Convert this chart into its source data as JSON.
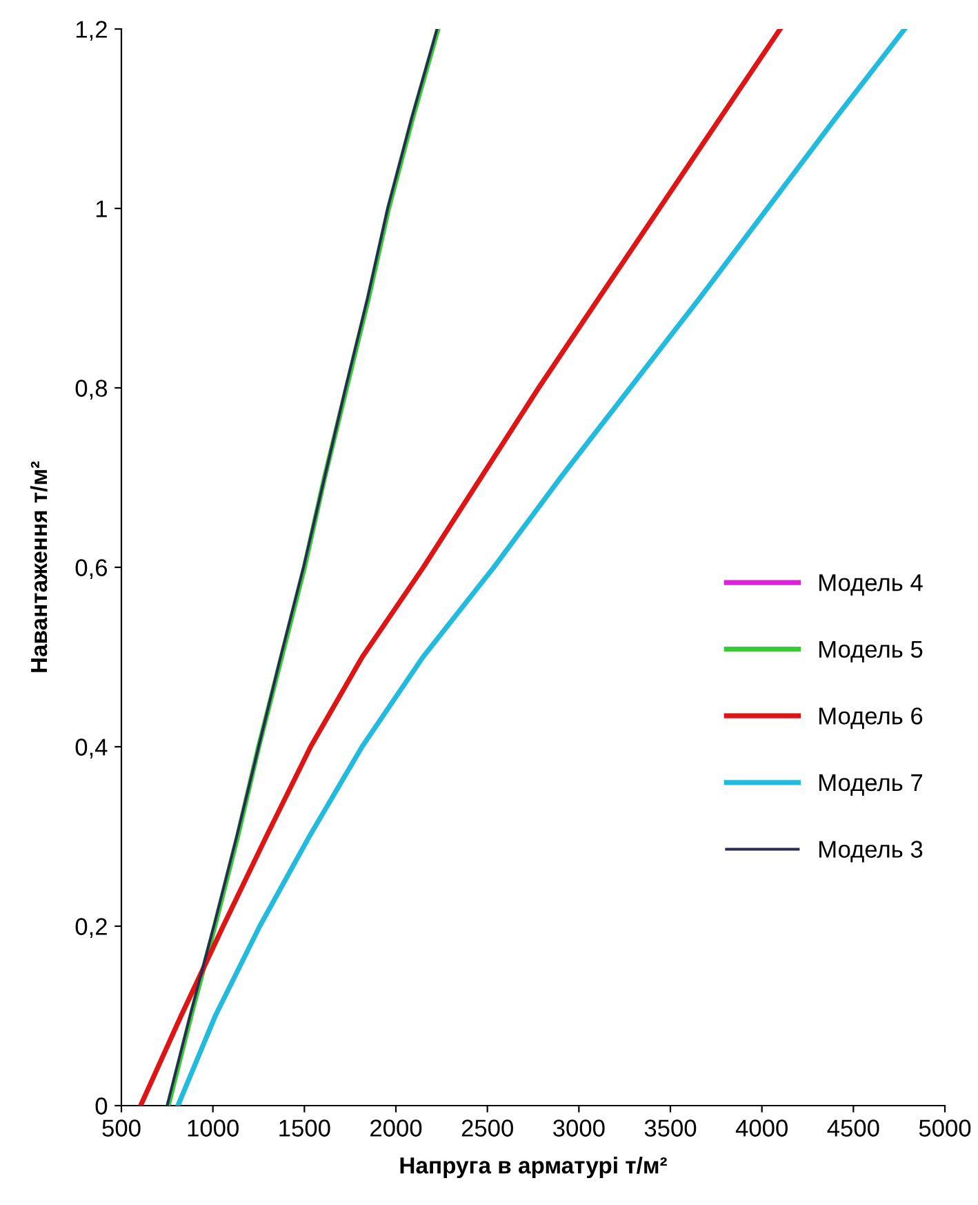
{
  "chart_data": {
    "type": "line",
    "xlabel": "Напруга в арматурі т/м²",
    "ylabel": "Навантаження т/м²",
    "xlim": [
      500,
      5000
    ],
    "xticks": [
      500,
      1000,
      1500,
      2000,
      2500,
      3000,
      3500,
      4000,
      4500,
      5000
    ],
    "ylim": [
      0,
      1.2
    ],
    "yticks": [
      0,
      {
        "value": 0.2,
        "label": "0,2"
      },
      {
        "value": 0.4,
        "label": "0,4"
      },
      {
        "value": 0.6,
        "label": "0,6"
      },
      {
        "value": 0.8,
        "label": "0,8"
      },
      1,
      {
        "value": 1.2,
        "label": "1,2"
      }
    ],
    "grid": false,
    "legend": "right",
    "marker": "none",
    "line_style": "solid",
    "series": [
      {
        "name": "Модель 4",
        "color": "#dd22dd",
        "values": [
          null,
          null,
          null,
          null,
          null,
          null,
          null,
          null,
          null,
          null,
          null,
          null,
          null
        ]
      },
      {
        "name": "Модель 5",
        "color": "#33cc33",
        "x": [
          756,
          880,
          1010,
          1135,
          1250,
          1375,
          1500,
          1610,
          1730,
          1850,
          1960,
          2090,
          2230
        ],
        "values": [
          0,
          0.1,
          0.2,
          0.3,
          0.4,
          0.5,
          0.6,
          0.7,
          0.8,
          0.9,
          1.0,
          1.1,
          1.2
        ]
      },
      {
        "name": "Модель 6",
        "color": "#dd1515",
        "x": [
          605,
          826,
          1056,
          1292,
          1534,
          1816,
          2150,
          2465,
          2780,
          3109,
          3440,
          3770,
          4100
        ],
        "values": [
          0,
          0.1,
          0.2,
          0.3,
          0.4,
          0.5,
          0.6,
          0.7,
          0.8,
          0.9,
          1.0,
          1.1,
          1.2
        ]
      },
      {
        "name": "Модель 7",
        "color": "#22bbdd",
        "x": [
          809,
          1013,
          1256,
          1527,
          1815,
          2148,
          2535,
          2900,
          3280,
          3660,
          4030,
          4400,
          4780
        ],
        "values": [
          0,
          0.1,
          0.2,
          0.3,
          0.4,
          0.5,
          0.6,
          0.7,
          0.8,
          0.9,
          1.0,
          1.1,
          1.2
        ]
      },
      {
        "name": "Модель 3",
        "color": "#2a2a55",
        "x": [
          750,
          875,
          1005,
          1130,
          1250,
          1370,
          1495,
          1610,
          1725,
          1845,
          1955,
          2085,
          2225
        ],
        "values": [
          0,
          0.1,
          0.2,
          0.3,
          0.4,
          0.5,
          0.6,
          0.7,
          0.8,
          0.9,
          1.0,
          1.1,
          1.2
        ]
      }
    ]
  }
}
